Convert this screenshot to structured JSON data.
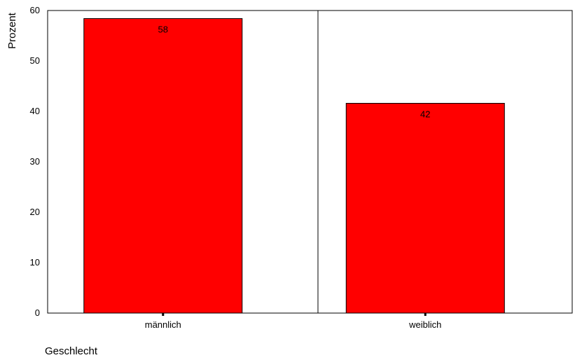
{
  "chart_data": {
    "type": "bar",
    "title": "",
    "xlabel": "Geschlecht",
    "ylabel": "Prozent",
    "categories": [
      "männlich",
      "weiblich"
    ],
    "values": [
      58.4,
      41.6
    ],
    "data_labels": [
      "58",
      "42"
    ],
    "ylim": [
      0,
      60
    ],
    "yticks": [
      0,
      10,
      20,
      30,
      40,
      50,
      60
    ],
    "grid": false,
    "legend": "none",
    "bar_color": "#ff0000",
    "bar_edge_color": "#000000"
  }
}
